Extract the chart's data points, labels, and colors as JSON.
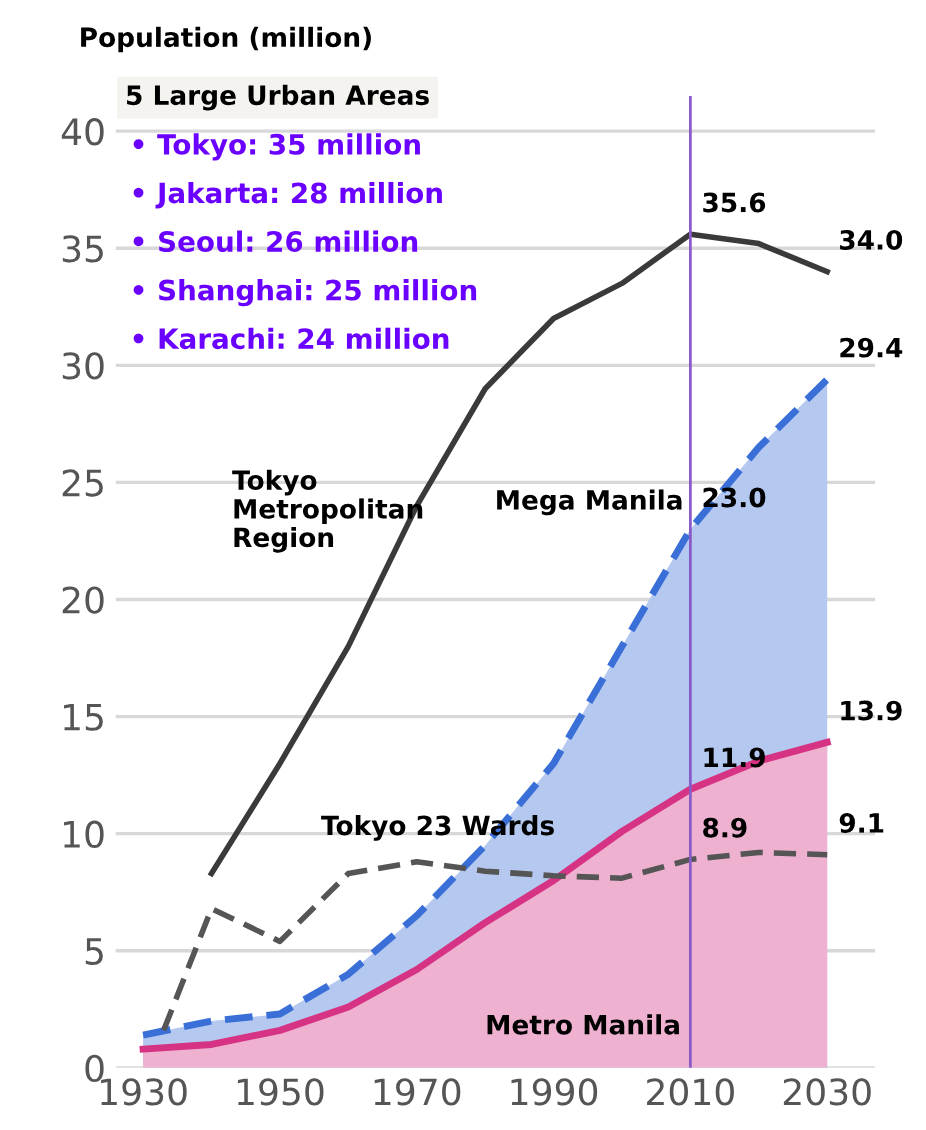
{
  "chart_data": {
    "type": "area",
    "ylabel": "Population (million)",
    "x": [
      1930,
      1940,
      1950,
      1960,
      1970,
      1980,
      1990,
      2000,
      2010,
      2020,
      2030
    ],
    "series": [
      {
        "name": "Metro Manila",
        "color": "#d63384",
        "line_style": "solid",
        "values": [
          0.8,
          1.0,
          1.6,
          2.6,
          4.2,
          6.2,
          8.0,
          10.1,
          11.9,
          13.1,
          13.9
        ],
        "value_labels": [
          null,
          null,
          null,
          null,
          null,
          null,
          null,
          null,
          "11.9",
          null,
          "13.9"
        ]
      },
      {
        "name": "Mega Manila",
        "color": "#3a6fd8",
        "line_style": "dashed",
        "values": [
          1.4,
          2.0,
          2.3,
          4.0,
          6.5,
          9.5,
          13.0,
          18.0,
          23.0,
          26.5,
          29.4
        ],
        "value_labels": [
          null,
          null,
          null,
          null,
          null,
          null,
          null,
          null,
          "23.0",
          null,
          "29.4"
        ]
      },
      {
        "name": "Tokyo\nMetropolitan\nRegion",
        "type": "line",
        "color": "#3a3a3a",
        "line_style": "solid",
        "x": [
          1940,
          1950,
          1960,
          1970,
          1980,
          1990,
          2000,
          2010,
          2020,
          2030
        ],
        "values": [
          8.3,
          13.0,
          18.0,
          24.0,
          29.0,
          32.0,
          33.5,
          35.6,
          35.2,
          34.0
        ],
        "value_labels": [
          null,
          null,
          null,
          null,
          null,
          null,
          null,
          "35.6",
          null,
          "34.0"
        ]
      },
      {
        "name": "Tokyo 23 Wards",
        "type": "line",
        "color": "#555555",
        "line_style": "dashed",
        "x": [
          1933,
          1940,
          1950,
          1960,
          1970,
          1980,
          1990,
          2000,
          2010,
          2020,
          2030
        ],
        "values": [
          1.6,
          6.8,
          5.4,
          8.3,
          8.8,
          8.4,
          8.2,
          8.1,
          8.9,
          9.2,
          9.1
        ],
        "value_labels": [
          null,
          null,
          null,
          null,
          null,
          null,
          null,
          null,
          "8.9",
          null,
          "9.1"
        ]
      }
    ],
    "xlim": [
      1926,
      2037
    ],
    "xticks": [
      1930,
      1950,
      1970,
      1990,
      2010,
      2030
    ],
    "ylim": [
      0,
      41.5
    ],
    "yticks": [
      0,
      5,
      10,
      15,
      20,
      25,
      30,
      35,
      40
    ],
    "grid": "y",
    "ref_lines": [
      {
        "axis": "x",
        "value": 2010,
        "color": "#8a5cc8"
      }
    ],
    "annotations": [
      "5 Large Urban Areas",
      "• Tokyo: 35 million",
      "• Jakarta: 28 million",
      "• Seoul: 26 million",
      "• Shanghai: 25 million",
      "• Karachi: 24 million"
    ]
  }
}
